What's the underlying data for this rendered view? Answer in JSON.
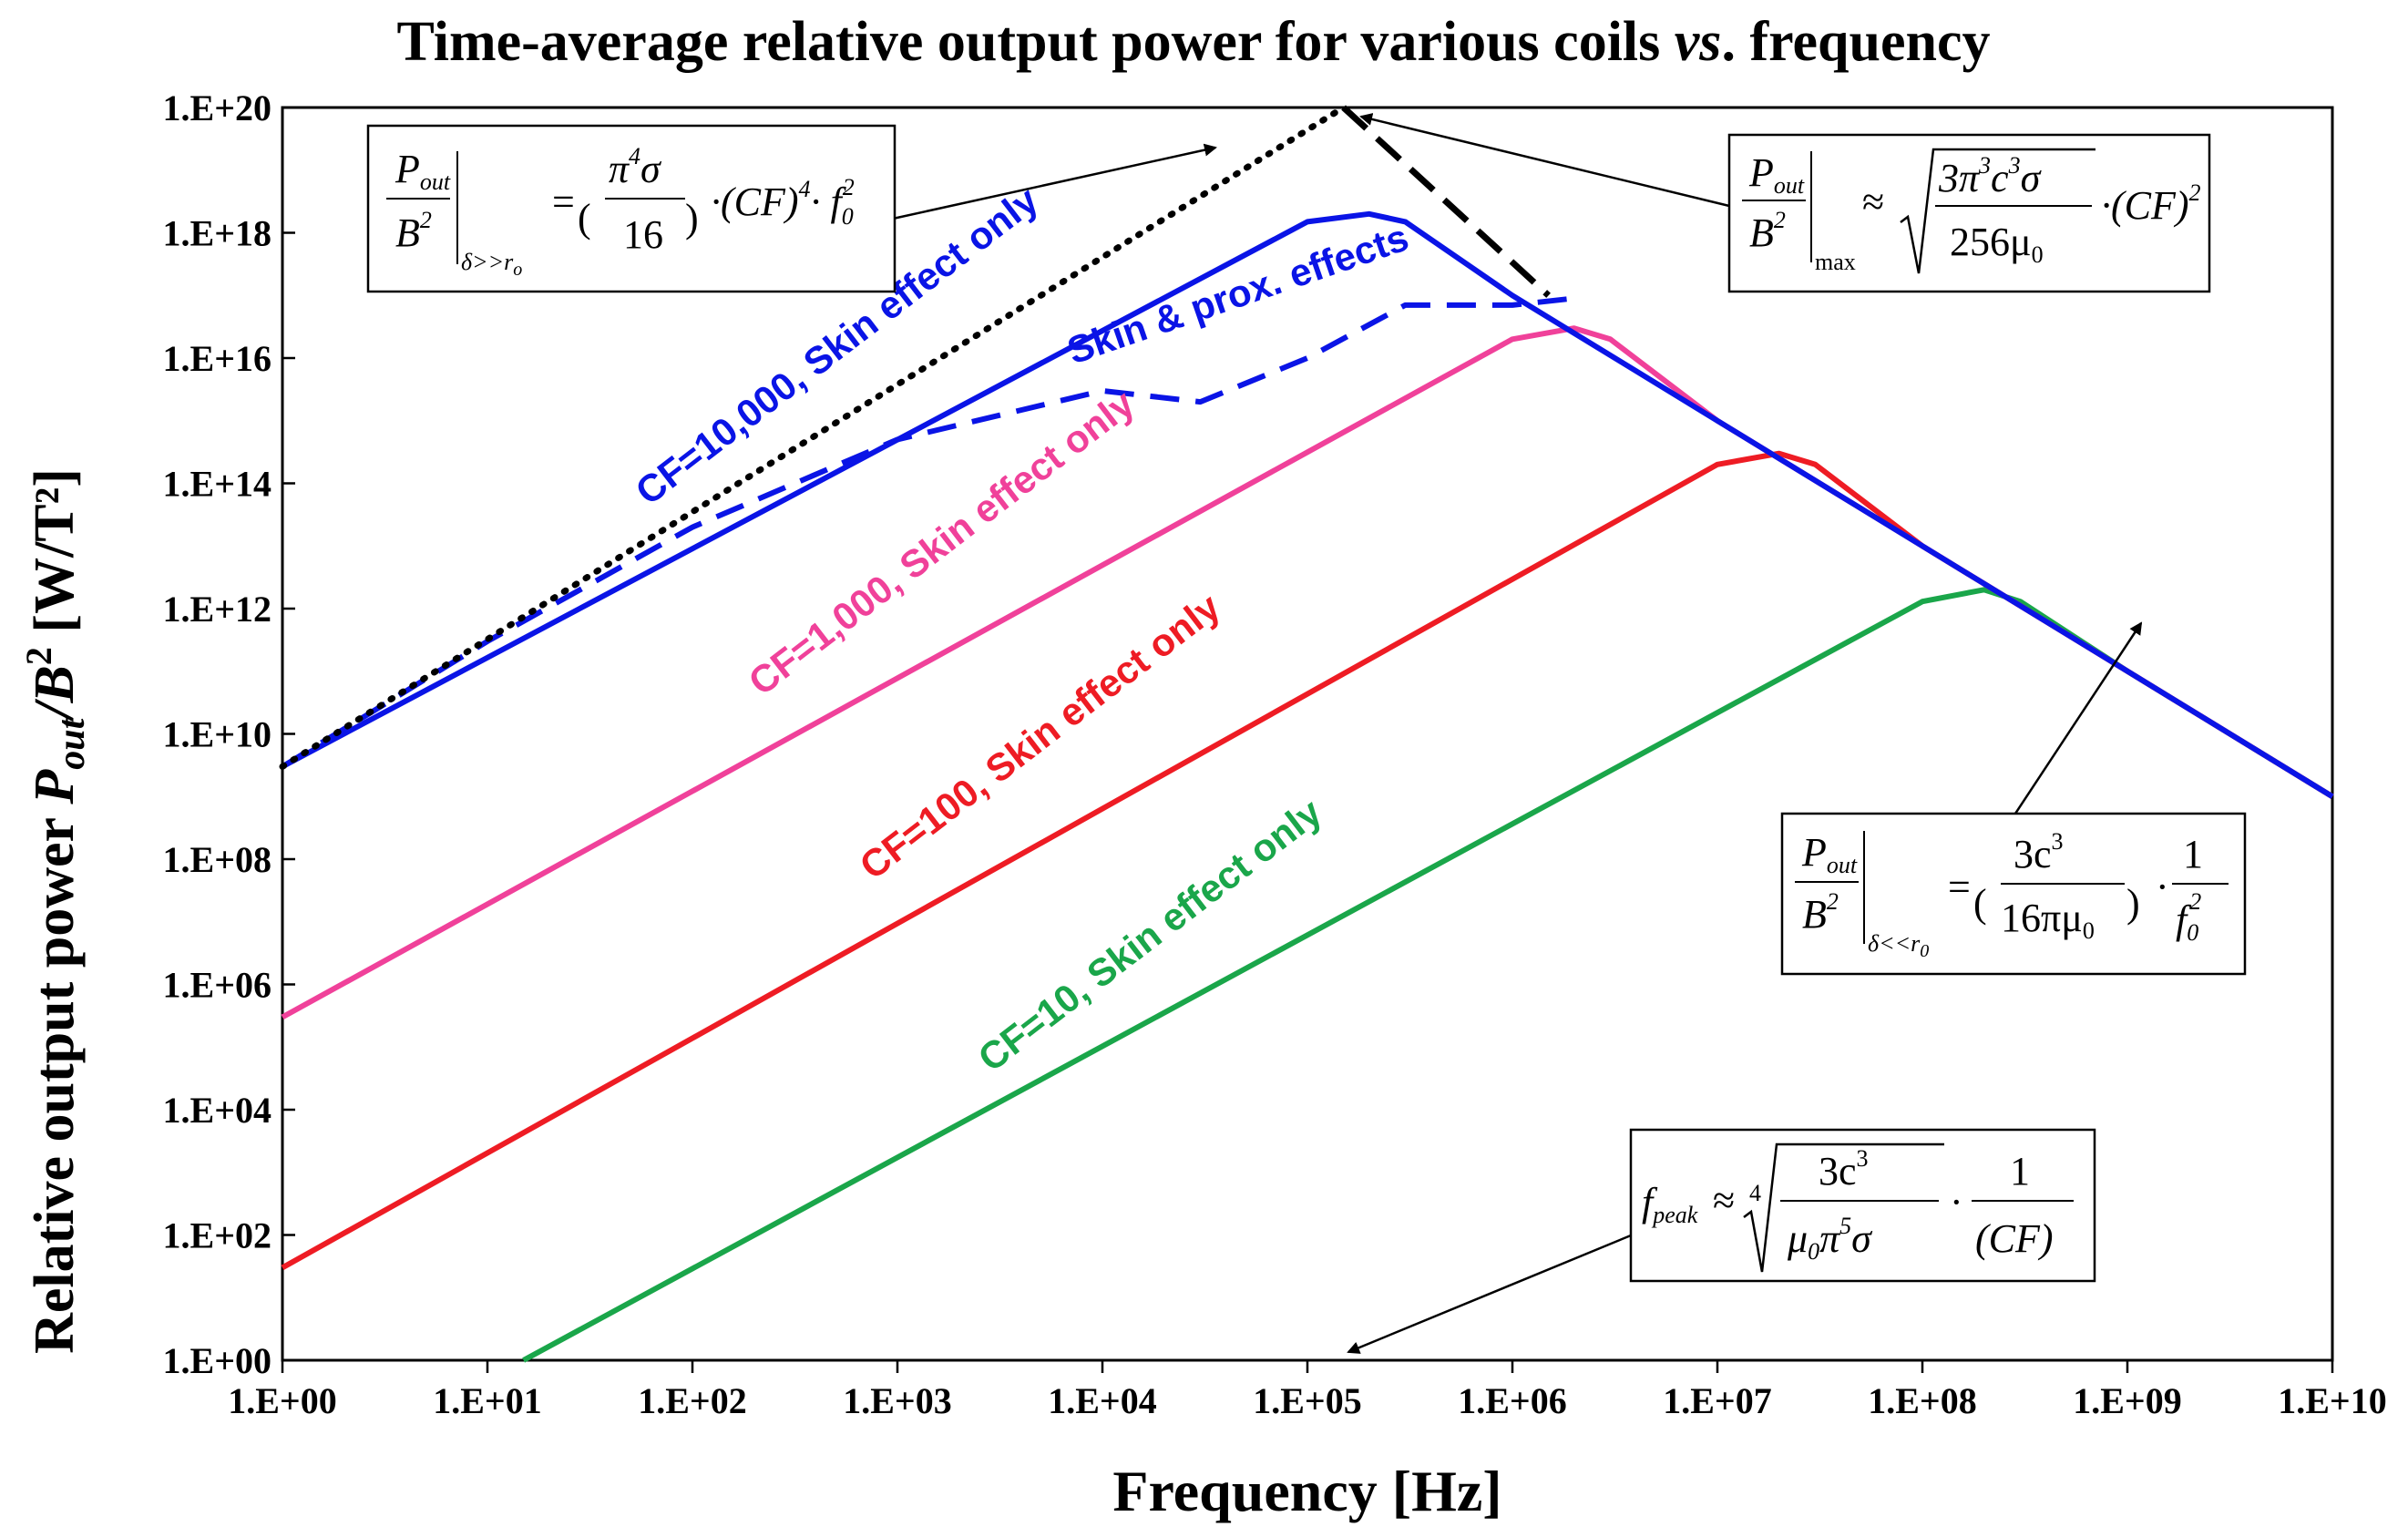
{
  "chart_data": {
    "type": "line",
    "title": "Time-average relative output power  for various coils ",
    "title_italic": "vs",
    "title_end": ". frequency",
    "xlabel": "Frequency [Hz]",
    "ylabel_main": "Relative  output power  ",
    "ylabel_sym": "P",
    "ylabel_sub": "out",
    "ylabel_div": "/B",
    "ylabel_sup": "2",
    "ylabel_unit": "   [W/T²]",
    "x_scale": "log",
    "y_scale": "log",
    "xlim": [
      1,
      10000000000
    ],
    "ylim": [
      1,
      100000000000000000000
    ],
    "x_ticks": [
      "1.E+00",
      "1.E+01",
      "1.E+02",
      "1.E+03",
      "1.E+04",
      "1.E+05",
      "1.E+06",
      "1.E+07",
      "1.E+08",
      "1.E+09",
      "1.E+10"
    ],
    "y_ticks": [
      "1.E+00",
      "1.E+02",
      "1.E+04",
      "1.E+06",
      "1.E+08",
      "1.E+10",
      "1.E+12",
      "1.E+14",
      "1.E+16",
      "1.E+18",
      "1.E+20"
    ],
    "series": [
      {
        "name": "CF=10, Skin effect only",
        "color": "#1aa64a",
        "style": "solid",
        "x": [
          15,
          100000000,
          200000000,
          300000000,
          1000000000,
          10000000000
        ],
        "y": [
          1,
          1300000000000,
          2000000000000,
          1300000000000,
          100000000000,
          1000000000
        ]
      },
      {
        "name": "CF=100, Skin effect only",
        "color": "#ee1c24",
        "style": "solid",
        "x": [
          1,
          10000000,
          20000000,
          30000000,
          100000000,
          1000000000,
          10000000000
        ],
        "y": [
          30,
          200000000000000,
          300000000000000,
          200000000000000,
          10000000000000,
          100000000000,
          1000000000
        ]
      },
      {
        "name": "CF=1,000, Skin effect only",
        "color": "#f0419a",
        "style": "solid",
        "x": [
          1,
          1000000,
          2000000,
          3000000,
          10000000,
          100000000,
          1000000000,
          10000000000
        ],
        "y": [
          300000,
          20000000000000000,
          30000000000000000,
          20000000000000000,
          1000000000000000,
          10000000000000,
          100000000000,
          1000000000
        ]
      },
      {
        "name": "CF=10,000, Skin effect only",
        "color": "#0a14e6",
        "style": "solid",
        "x": [
          1,
          100000,
          200000,
          300000,
          1000000,
          10000000,
          100000000,
          1000000000,
          10000000000
        ],
        "y": [
          3000000000,
          1500000000000000000,
          2000000000000000000,
          1500000000000000000,
          100000000000000000,
          1000000000000000,
          10000000000000,
          100000000000,
          1000000000
        ]
      },
      {
        "name": "Skin & prox. effects",
        "color": "#0a14e6",
        "style": "dashed",
        "x": [
          1,
          10,
          100,
          1000,
          10000,
          30000,
          100000,
          300000,
          1000000,
          2000000
        ],
        "y": [
          3000000000,
          300000000000,
          20000000000000,
          500000000000000,
          3000000000000000,
          2000000000000000,
          10000000000000000,
          70000000000000000,
          70000000000000000,
          90000000000000000
        ]
      },
      {
        "name": "asymptote δ>>r0",
        "color": "#000000",
        "style": "dotted",
        "x": [
          1,
          150000
        ],
        "y": [
          3000000000,
          100000000000000000000
        ]
      },
      {
        "name": "asymptote max",
        "color": "#000000",
        "style": "dash",
        "x": [
          150000,
          1500000
        ],
        "y": [
          100000000000000000000,
          100000000000000000
        ]
      }
    ],
    "annotations": {
      "eq1": {
        "frac_num": "P",
        "frac_num_sub": "out",
        "frac_den": "B",
        "frac_den_sup": "2",
        "condition": "δ>>r",
        "condition_sub": "o",
        "equals": "=",
        "inner_num": "π",
        "inner_num_sup": "4",
        "inner_num_end": "σ",
        "inner_den": "16",
        "tail": "·(CF)",
        "tail_sup": "4",
        "tail2": "· f",
        "tail2_sub": "0",
        "tail2_sup": "2"
      },
      "eq2": {
        "frac_num": "P",
        "frac_num_sub": "out",
        "frac_den": "B",
        "frac_den_sup": "2",
        "condition": "max",
        "approx": "≈",
        "rad_num": "3π",
        "rad_num_sup1": "3",
        "rad_num_mid": "c",
        "rad_num_sup2": "3",
        "rad_num_end": "σ",
        "rad_den": "256μ",
        "rad_den_sub": "0",
        "tail": "·(CF)",
        "tail_sup": "2"
      },
      "eq3": {
        "frac_num": "P",
        "frac_num_sub": "out",
        "frac_den": "B",
        "frac_den_sup": "2",
        "condition": "δ<<r",
        "condition_sub": "0",
        "equals": "=",
        "inner_num": "3c",
        "inner_num_sup": "3",
        "inner_den": "16πμ",
        "inner_den_sub": "0",
        "tail": "·",
        "tail_num": "1",
        "tail_den": "f",
        "tail_den_sub": "0",
        "tail_den_sup": "2"
      },
      "eq4": {
        "lhs": "f",
        "lhs_sub": "peak",
        "approx": "≈",
        "root_index": "4",
        "rad_num": "3c",
        "rad_num_sup": "3",
        "rad_den": "μ",
        "rad_den_sub": "0",
        "rad_den_mid": "π",
        "rad_den_sup": "5",
        "rad_den_end": "σ",
        "tail": "·",
        "tail_num": "1",
        "tail_den": "(CF)"
      }
    }
  }
}
